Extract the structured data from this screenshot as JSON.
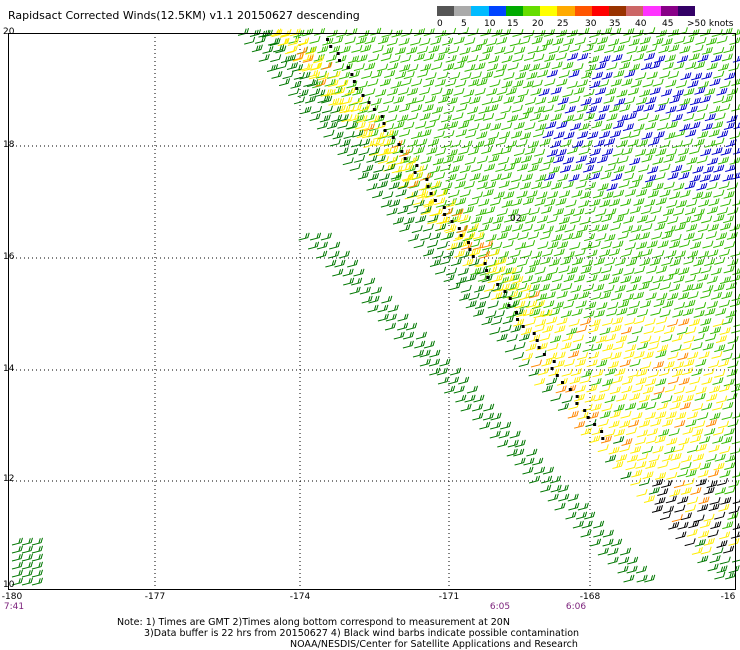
{
  "title": "Rapidsact Corrected Winds(12.5KM) v1.1 20150627 descending",
  "legend": {
    "colors": [
      "#555555",
      "#aaaaaa",
      "#00bbff",
      "#0044ff",
      "#00aa00",
      "#66dd00",
      "#ffff00",
      "#ffaa00",
      "#ff5500",
      "#ff0000",
      "#993300",
      "#cc6666",
      "#ff33ff",
      "#880088",
      "#330066"
    ],
    "labels": [
      "0",
      "5",
      "10",
      "15",
      "20",
      "25",
      "30",
      "35",
      "40",
      "45",
      ">50 knots"
    ]
  },
  "axes": {
    "lat_labels": [
      "20",
      "18",
      "16",
      "14",
      "12",
      "10"
    ],
    "lon_labels": [
      "-180",
      "-177",
      "-174",
      "-171",
      "-168",
      "-16"
    ]
  },
  "time_labels": [
    "7:41",
    "6:05",
    "6:06"
  ],
  "notes": {
    "line1": "Note: 1) Times are GMT 2)Times along bottom correspond to measurement at 20N",
    "line2": "3)Data buffer is 22 hrs from 20150627 4) Black wind barbs indicate possible contamination",
    "line3": "NOAA/NESDIS/Center for Satellite Applications and Research"
  },
  "map_labels": {
    "storm_marker": "02"
  }
}
